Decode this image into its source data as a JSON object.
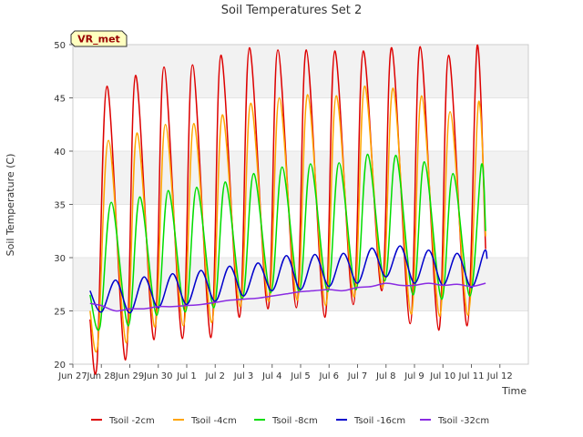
{
  "chart_data": {
    "type": "line",
    "title": "Soil Temperatures Set 2",
    "xlabel": "Time",
    "ylabel": "Soil Temperature (C)",
    "badge": "VR_met",
    "xlim": [
      0,
      16
    ],
    "ylim": [
      20,
      50
    ],
    "x_ticks": [
      {
        "x": 0,
        "label": "Jun 27"
      },
      {
        "x": 1,
        "label": "Jun 28"
      },
      {
        "x": 2,
        "label": "Jun 29"
      },
      {
        "x": 3,
        "label": "Jun 30"
      },
      {
        "x": 4,
        "label": "Jul 1"
      },
      {
        "x": 5,
        "label": "Jul 2"
      },
      {
        "x": 6,
        "label": "Jul 3"
      },
      {
        "x": 7,
        "label": "Jul 4"
      },
      {
        "x": 8,
        "label": "Jul 5"
      },
      {
        "x": 9,
        "label": "Jul 6"
      },
      {
        "x": 10,
        "label": "Jul 7"
      },
      {
        "x": 11,
        "label": "Jul 8"
      },
      {
        "x": 12,
        "label": "Jul 9"
      },
      {
        "x": 13,
        "label": "Jul 10"
      },
      {
        "x": 14,
        "label": "Jul 11"
      },
      {
        "x": 15,
        "label": "Jul 12"
      }
    ],
    "y_ticks": [
      20,
      25,
      30,
      35,
      40,
      45,
      50
    ],
    "grid_bands": true,
    "legend_position": "bottom",
    "series": [
      {
        "name": "Tsoil -2cm",
        "color": "#dd0000",
        "points": [
          [
            0.6,
            24.2
          ],
          [
            0.85,
            20.1
          ],
          [
            1.2,
            46.1
          ],
          [
            1.85,
            20.4
          ],
          [
            2.2,
            47.1
          ],
          [
            2.85,
            22.3
          ],
          [
            3.2,
            47.9
          ],
          [
            3.85,
            22.4
          ],
          [
            4.2,
            48.1
          ],
          [
            4.85,
            22.5
          ],
          [
            5.2,
            49.0
          ],
          [
            5.85,
            24.4
          ],
          [
            6.2,
            49.7
          ],
          [
            6.85,
            25.2
          ],
          [
            7.2,
            49.5
          ],
          [
            7.85,
            25.3
          ],
          [
            8.2,
            49.5
          ],
          [
            8.85,
            24.4
          ],
          [
            9.2,
            49.4
          ],
          [
            9.85,
            25.6
          ],
          [
            10.2,
            49.4
          ],
          [
            10.85,
            26.9
          ],
          [
            11.2,
            49.7
          ],
          [
            11.85,
            23.8
          ],
          [
            12.2,
            49.8
          ],
          [
            12.85,
            23.2
          ],
          [
            13.2,
            49.0
          ],
          [
            13.85,
            23.6
          ],
          [
            14.2,
            49.9
          ],
          [
            14.5,
            30.8
          ]
        ]
      },
      {
        "name": "Tsoil -4cm",
        "color": "#ffa500",
        "points": [
          [
            0.6,
            25.0
          ],
          [
            0.88,
            21.9
          ],
          [
            1.25,
            41.0
          ],
          [
            1.88,
            22.0
          ],
          [
            2.25,
            41.7
          ],
          [
            2.88,
            23.5
          ],
          [
            3.25,
            42.5
          ],
          [
            3.88,
            23.6
          ],
          [
            4.25,
            42.6
          ],
          [
            4.88,
            23.9
          ],
          [
            5.25,
            43.4
          ],
          [
            5.88,
            25.4
          ],
          [
            6.25,
            44.5
          ],
          [
            6.88,
            25.9
          ],
          [
            7.25,
            45.0
          ],
          [
            7.88,
            26.0
          ],
          [
            8.25,
            45.3
          ],
          [
            8.88,
            25.5
          ],
          [
            9.25,
            45.2
          ],
          [
            9.88,
            26.3
          ],
          [
            10.25,
            46.1
          ],
          [
            10.88,
            27.2
          ],
          [
            11.25,
            45.9
          ],
          [
            11.88,
            24.7
          ],
          [
            12.25,
            45.2
          ],
          [
            12.88,
            24.5
          ],
          [
            13.25,
            43.7
          ],
          [
            13.88,
            24.6
          ],
          [
            14.25,
            44.6
          ],
          [
            14.5,
            32.0
          ]
        ]
      },
      {
        "name": "Tsoil -8cm",
        "color": "#00dd00",
        "points": [
          [
            0.6,
            26.5
          ],
          [
            0.95,
            23.5
          ],
          [
            1.35,
            35.2
          ],
          [
            1.95,
            23.6
          ],
          [
            2.35,
            35.7
          ],
          [
            2.95,
            24.6
          ],
          [
            3.35,
            36.3
          ],
          [
            3.95,
            24.9
          ],
          [
            4.35,
            36.6
          ],
          [
            4.95,
            25.3
          ],
          [
            5.35,
            37.1
          ],
          [
            5.95,
            26.1
          ],
          [
            6.35,
            37.9
          ],
          [
            6.95,
            26.7
          ],
          [
            7.35,
            38.5
          ],
          [
            7.95,
            26.8
          ],
          [
            8.35,
            38.8
          ],
          [
            8.95,
            26.8
          ],
          [
            9.35,
            38.9
          ],
          [
            9.95,
            27.0
          ],
          [
            10.35,
            39.7
          ],
          [
            10.95,
            27.8
          ],
          [
            11.35,
            39.6
          ],
          [
            11.95,
            26.5
          ],
          [
            12.35,
            39.0
          ],
          [
            12.95,
            26.1
          ],
          [
            13.35,
            37.9
          ],
          [
            13.95,
            26.4
          ],
          [
            14.35,
            38.7
          ],
          [
            14.5,
            32.5
          ]
        ]
      },
      {
        "name": "Tsoil -16cm",
        "color": "#0000cc",
        "points": [
          [
            0.6,
            26.9
          ],
          [
            1.0,
            24.9
          ],
          [
            1.5,
            27.9
          ],
          [
            2.0,
            24.8
          ],
          [
            2.5,
            28.2
          ],
          [
            3.0,
            25.3
          ],
          [
            3.5,
            28.5
          ],
          [
            4.0,
            25.6
          ],
          [
            4.5,
            28.8
          ],
          [
            5.0,
            25.9
          ],
          [
            5.5,
            29.2
          ],
          [
            6.0,
            26.4
          ],
          [
            6.5,
            29.5
          ],
          [
            7.0,
            26.9
          ],
          [
            7.5,
            30.2
          ],
          [
            8.0,
            27.0
          ],
          [
            8.5,
            30.3
          ],
          [
            9.0,
            27.3
          ],
          [
            9.5,
            30.4
          ],
          [
            10.0,
            27.6
          ],
          [
            10.5,
            30.9
          ],
          [
            11.0,
            28.2
          ],
          [
            11.5,
            31.1
          ],
          [
            12.0,
            27.6
          ],
          [
            12.5,
            30.7
          ],
          [
            13.0,
            27.4
          ],
          [
            13.5,
            30.4
          ],
          [
            14.0,
            27.2
          ],
          [
            14.45,
            30.6
          ],
          [
            14.55,
            29.9
          ]
        ]
      },
      {
        "name": "Tsoil -32cm",
        "color": "#8a2be2",
        "points": [
          [
            0.6,
            25.7
          ],
          [
            1.0,
            25.5
          ],
          [
            1.5,
            25.0
          ],
          [
            2.0,
            25.2
          ],
          [
            2.5,
            25.2
          ],
          [
            3.0,
            25.4
          ],
          [
            3.5,
            25.4
          ],
          [
            4.0,
            25.5
          ],
          [
            4.5,
            25.6
          ],
          [
            5.0,
            25.8
          ],
          [
            5.5,
            26.0
          ],
          [
            6.0,
            26.1
          ],
          [
            6.5,
            26.2
          ],
          [
            7.0,
            26.4
          ],
          [
            7.5,
            26.6
          ],
          [
            8.0,
            26.8
          ],
          [
            8.5,
            26.9
          ],
          [
            9.0,
            27.0
          ],
          [
            9.5,
            26.9
          ],
          [
            10.0,
            27.2
          ],
          [
            10.5,
            27.3
          ],
          [
            11.0,
            27.6
          ],
          [
            11.5,
            27.4
          ],
          [
            12.0,
            27.4
          ],
          [
            12.5,
            27.6
          ],
          [
            13.0,
            27.4
          ],
          [
            13.5,
            27.5
          ],
          [
            14.0,
            27.3
          ],
          [
            14.5,
            27.6
          ]
        ]
      }
    ]
  }
}
